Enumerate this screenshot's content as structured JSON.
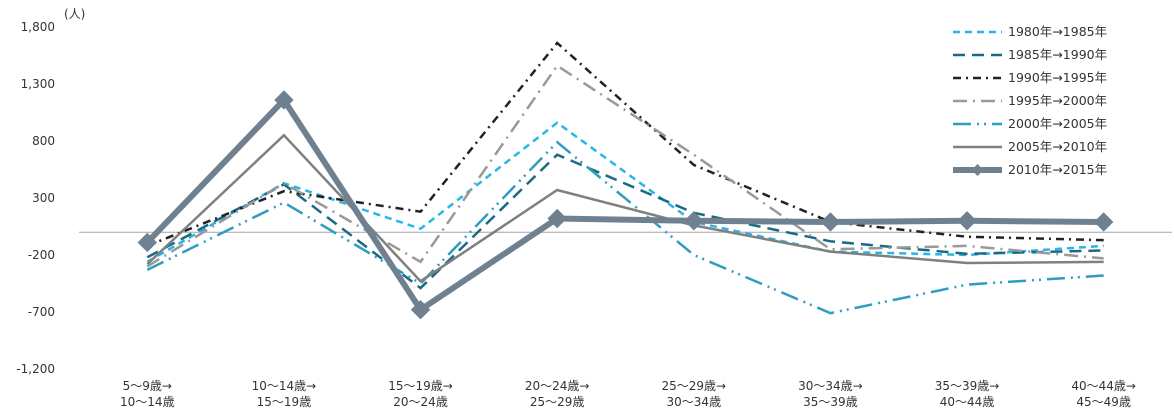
{
  "chart_data": {
    "type": "line",
    "y_unit": "(人)",
    "ylim": [
      -1200,
      1800
    ],
    "y_ticks": [
      "1,800",
      "1,300",
      "800",
      "300",
      "-200",
      "-700",
      "-1,200"
    ],
    "y_tick_values": [
      1800,
      1300,
      800,
      300,
      -200,
      -700,
      -1200
    ],
    "categories": [
      [
        "5～9歳→",
        "10～14歳"
      ],
      [
        "10～14歳→",
        "15～19歳"
      ],
      [
        "15～19歳→",
        "20～24歳"
      ],
      [
        "20～24歳→",
        "25～29歳"
      ],
      [
        "25～29歳→",
        "30～34歳"
      ],
      [
        "30～34歳→",
        "35～39歳"
      ],
      [
        "35～39歳→",
        "40～44歳"
      ],
      [
        "40～44歳→",
        "45～49歳"
      ]
    ],
    "grid": false,
    "legend_position": "top-right",
    "series": [
      {
        "name": "1980年→1985年",
        "color": "#29b6e6",
        "dash": "dash",
        "width": 2.5,
        "marker": false,
        "values": [
          -260,
          430,
          30,
          960,
          90,
          -170,
          -200,
          -120
        ]
      },
      {
        "name": "1985年→1990年",
        "color": "#1a6a85",
        "dash": "longdash",
        "width": 2.5,
        "marker": false,
        "values": [
          -220,
          420,
          -490,
          680,
          170,
          -80,
          -190,
          -160
        ]
      },
      {
        "name": "1990年→1995年",
        "color": "#222222",
        "dash": "dashdot",
        "width": 2.5,
        "marker": false,
        "values": [
          -120,
          360,
          180,
          1660,
          590,
          90,
          -40,
          -70
        ]
      },
      {
        "name": "1995年→2000年",
        "color": "#999999",
        "dash": "longdashdot",
        "width": 2.5,
        "marker": false,
        "values": [
          -300,
          430,
          -260,
          1460,
          680,
          -150,
          -120,
          -230
        ]
      },
      {
        "name": "2000年→2005年",
        "color": "#2e9dbf",
        "dash": "longdashdotdot",
        "width": 2.5,
        "marker": false,
        "values": [
          -330,
          260,
          -450,
          790,
          -200,
          -710,
          -460,
          -380
        ]
      },
      {
        "name": "2005年→2010年",
        "color": "#808080",
        "dash": "solid",
        "width": 2.5,
        "marker": false,
        "values": [
          -280,
          850,
          -430,
          370,
          60,
          -170,
          -270,
          -260
        ]
      },
      {
        "name": "2010年→2015年",
        "color": "#6f8191",
        "dash": "solid",
        "width": 6,
        "marker": true,
        "values": [
          -90,
          1160,
          -680,
          120,
          100,
          90,
          100,
          90
        ]
      }
    ]
  }
}
